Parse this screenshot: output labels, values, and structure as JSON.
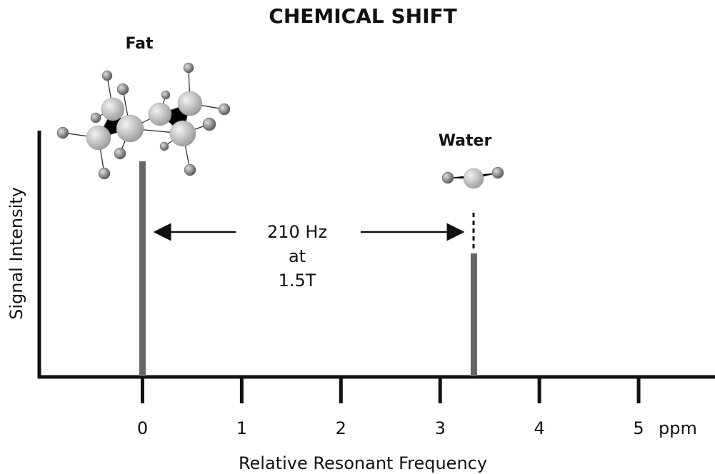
{
  "chart_data": {
    "type": "spectrum",
    "title": "CHEMICAL SHIFT",
    "categories": [
      "Fat",
      "Water"
    ],
    "x": [
      0,
      3.34
    ],
    "values": [
      0.875,
      0.5
    ],
    "color": "#666666",
    "xlim": [
      -1.04,
      5.77
    ],
    "xticks": [
      0,
      1,
      2,
      3,
      4,
      5
    ],
    "x_unit": "ppm",
    "ylim": [
      0,
      1
    ],
    "x_label": "Relative Resonant Frequency",
    "y_label": "Signal Intensity",
    "annotation": [
      "210 Hz",
      "at",
      "1.5T"
    ]
  }
}
